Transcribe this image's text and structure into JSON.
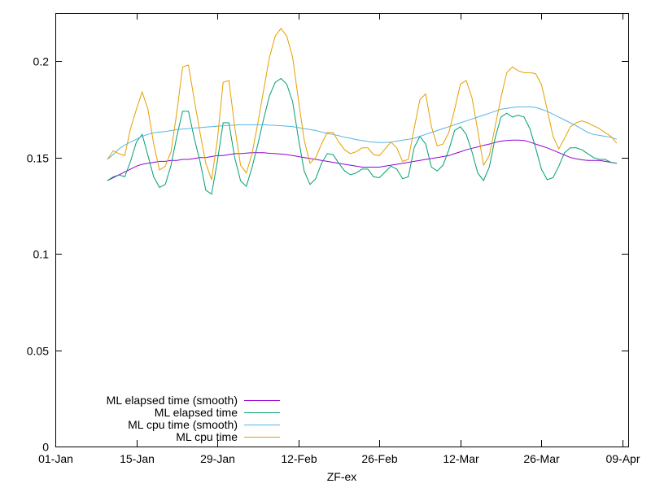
{
  "chart_data": {
    "type": "line",
    "title": "",
    "xlabel": "ZF-ex",
    "ylabel": "",
    "xlim": [
      "2024-01-01",
      "2024-04-09"
    ],
    "ylim": [
      0,
      0.225
    ],
    "x_ticks": [
      "01-Jan",
      "15-Jan",
      "29-Jan",
      "12-Feb",
      "26-Feb",
      "12-Mar",
      "26-Mar",
      "09-Apr"
    ],
    "y_ticks": [
      "0",
      "0.05",
      "0.1",
      "0.15",
      "0.2"
    ],
    "y_tick_values": [
      0,
      0.05,
      0.1,
      0.15,
      0.2
    ],
    "grid": false,
    "legend_position": "bottom-left",
    "x": [
      "2024-01-10",
      "2024-01-11",
      "2024-01-12",
      "2024-01-13",
      "2024-01-14",
      "2024-01-15",
      "2024-01-16",
      "2024-01-17",
      "2024-01-18",
      "2024-01-19",
      "2024-01-20",
      "2024-01-21",
      "2024-01-22",
      "2024-01-23",
      "2024-01-24",
      "2024-01-25",
      "2024-01-26",
      "2024-01-27",
      "2024-01-28",
      "2024-01-29",
      "2024-01-30",
      "2024-01-31",
      "2024-02-01",
      "2024-02-02",
      "2024-02-03",
      "2024-02-04",
      "2024-02-05",
      "2024-02-06",
      "2024-02-07",
      "2024-02-08",
      "2024-02-09",
      "2024-02-10",
      "2024-02-11",
      "2024-02-12",
      "2024-02-13",
      "2024-02-14",
      "2024-02-15",
      "2024-02-16",
      "2024-02-17",
      "2024-02-18",
      "2024-02-19",
      "2024-02-20",
      "2024-02-21",
      "2024-02-22",
      "2024-02-23",
      "2024-02-24",
      "2024-02-25",
      "2024-02-26",
      "2024-02-27",
      "2024-02-28",
      "2024-02-29",
      "2024-03-01",
      "2024-03-02",
      "2024-03-03",
      "2024-03-04",
      "2024-03-05",
      "2024-03-06",
      "2024-03-07",
      "2024-03-08",
      "2024-03-09",
      "2024-03-10",
      "2024-03-11",
      "2024-03-12",
      "2024-03-13",
      "2024-03-14",
      "2024-03-15",
      "2024-03-16",
      "2024-03-17",
      "2024-03-18",
      "2024-03-19",
      "2024-03-20",
      "2024-03-21",
      "2024-03-22",
      "2024-03-23",
      "2024-03-24",
      "2024-03-25",
      "2024-03-26",
      "2024-03-27",
      "2024-03-28",
      "2024-03-29",
      "2024-03-30",
      "2024-03-31",
      "2024-04-01",
      "2024-04-02",
      "2024-04-03",
      "2024-04-04",
      "2024-04-05",
      "2024-04-06",
      "2024-04-07"
    ],
    "series": [
      {
        "name": "ML elapsed time (smooth)",
        "color": "#9400d3",
        "values": [
          0.138,
          0.1395,
          0.141,
          0.1425,
          0.144,
          0.1455,
          0.1465,
          0.147,
          0.1475,
          0.148,
          0.148,
          0.1485,
          0.1485,
          0.149,
          0.149,
          0.1495,
          0.15,
          0.15,
          0.1505,
          0.151,
          0.151,
          0.1515,
          0.152,
          0.152,
          0.1523,
          0.1525,
          0.1525,
          0.1525,
          0.1522,
          0.152,
          0.1518,
          0.1515,
          0.151,
          0.1505,
          0.15,
          0.1495,
          0.149,
          0.1485,
          0.148,
          0.1475,
          0.147,
          0.1465,
          0.146,
          0.1455,
          0.145,
          0.145,
          0.145,
          0.145,
          0.1455,
          0.146,
          0.1465,
          0.147,
          0.1475,
          0.148,
          0.1485,
          0.149,
          0.1495,
          0.15,
          0.1505,
          0.151,
          0.152,
          0.153,
          0.154,
          0.1548,
          0.1555,
          0.1563,
          0.157,
          0.1578,
          0.1585,
          0.1588,
          0.159,
          0.159,
          0.1588,
          0.158,
          0.157,
          0.156,
          0.155,
          0.1538,
          0.1525,
          0.1513,
          0.15,
          0.1493,
          0.1488,
          0.1485,
          0.1485,
          0.1485,
          0.148,
          0.1475,
          0.147
        ]
      },
      {
        "name": "ML elapsed time",
        "color": "#009e73",
        "values": [
          0.138,
          0.14,
          0.141,
          0.14,
          0.148,
          0.158,
          0.162,
          0.151,
          0.14,
          0.1345,
          0.136,
          0.146,
          0.161,
          0.174,
          0.174,
          0.16,
          0.148,
          0.133,
          0.131,
          0.148,
          0.168,
          0.168,
          0.15,
          0.138,
          0.135,
          0.145,
          0.157,
          0.17,
          0.182,
          0.189,
          0.191,
          0.188,
          0.179,
          0.16,
          0.143,
          0.136,
          0.139,
          0.147,
          0.152,
          0.1515,
          0.147,
          0.143,
          0.141,
          0.142,
          0.144,
          0.144,
          0.14,
          0.1395,
          0.1425,
          0.1455,
          0.144,
          0.139,
          0.14,
          0.155,
          0.161,
          0.157,
          0.145,
          0.143,
          0.146,
          0.154,
          0.164,
          0.166,
          0.162,
          0.153,
          0.142,
          0.138,
          0.145,
          0.16,
          0.171,
          0.173,
          0.171,
          0.172,
          0.171,
          0.165,
          0.155,
          0.144,
          0.1385,
          0.1395,
          0.1455,
          0.1525,
          0.155,
          0.155,
          0.154,
          0.152,
          0.15,
          0.149,
          0.149,
          0.1475,
          0.147
        ]
      },
      {
        "name": "ML cpu time (smooth)",
        "color": "#56b4e9",
        "values": [
          0.149,
          0.1515,
          0.1545,
          0.1565,
          0.158,
          0.1595,
          0.161,
          0.162,
          0.1628,
          0.1632,
          0.1635,
          0.164,
          0.1645,
          0.1648,
          0.165,
          0.1653,
          0.1655,
          0.1658,
          0.166,
          0.1663,
          0.1665,
          0.1667,
          0.1668,
          0.167,
          0.167,
          0.167,
          0.167,
          0.167,
          0.1668,
          0.1667,
          0.1665,
          0.1663,
          0.166,
          0.1655,
          0.165,
          0.1645,
          0.164,
          0.1633,
          0.1625,
          0.162,
          0.1613,
          0.1605,
          0.16,
          0.1593,
          0.1588,
          0.1583,
          0.158,
          0.1578,
          0.1578,
          0.158,
          0.1585,
          0.159,
          0.1595,
          0.16,
          0.161,
          0.162,
          0.163,
          0.164,
          0.165,
          0.166,
          0.167,
          0.168,
          0.169,
          0.17,
          0.171,
          0.172,
          0.173,
          0.174,
          0.175,
          0.1755,
          0.176,
          0.1763,
          0.1763,
          0.1763,
          0.176,
          0.175,
          0.174,
          0.1725,
          0.171,
          0.1695,
          0.168,
          0.1665,
          0.1648,
          0.163,
          0.162,
          0.1615,
          0.161,
          0.1605,
          0.1595
        ]
      },
      {
        "name": "ML cpu time",
        "color": "#e69f00",
        "values": [
          0.149,
          0.1535,
          0.152,
          0.151,
          0.165,
          0.175,
          0.184,
          0.175,
          0.157,
          0.1435,
          0.1455,
          0.153,
          0.1735,
          0.197,
          0.198,
          0.18,
          0.163,
          0.147,
          0.1385,
          0.159,
          0.189,
          0.19,
          0.166,
          0.146,
          0.142,
          0.152,
          0.168,
          0.185,
          0.202,
          0.213,
          0.217,
          0.213,
          0.202,
          0.18,
          0.159,
          0.147,
          0.15,
          0.157,
          0.163,
          0.163,
          0.158,
          0.154,
          0.152,
          0.153,
          0.155,
          0.155,
          0.1515,
          0.151,
          0.1545,
          0.158,
          0.155,
          0.148,
          0.149,
          0.165,
          0.18,
          0.183,
          0.166,
          0.156,
          0.157,
          0.163,
          0.175,
          0.188,
          0.19,
          0.181,
          0.164,
          0.146,
          0.151,
          0.166,
          0.181,
          0.194,
          0.197,
          0.195,
          0.194,
          0.194,
          0.1935,
          0.188,
          0.175,
          0.161,
          0.1545,
          0.16,
          0.166,
          0.168,
          0.169,
          0.168,
          0.1665,
          0.165,
          0.163,
          0.161,
          0.1575
        ]
      }
    ]
  }
}
